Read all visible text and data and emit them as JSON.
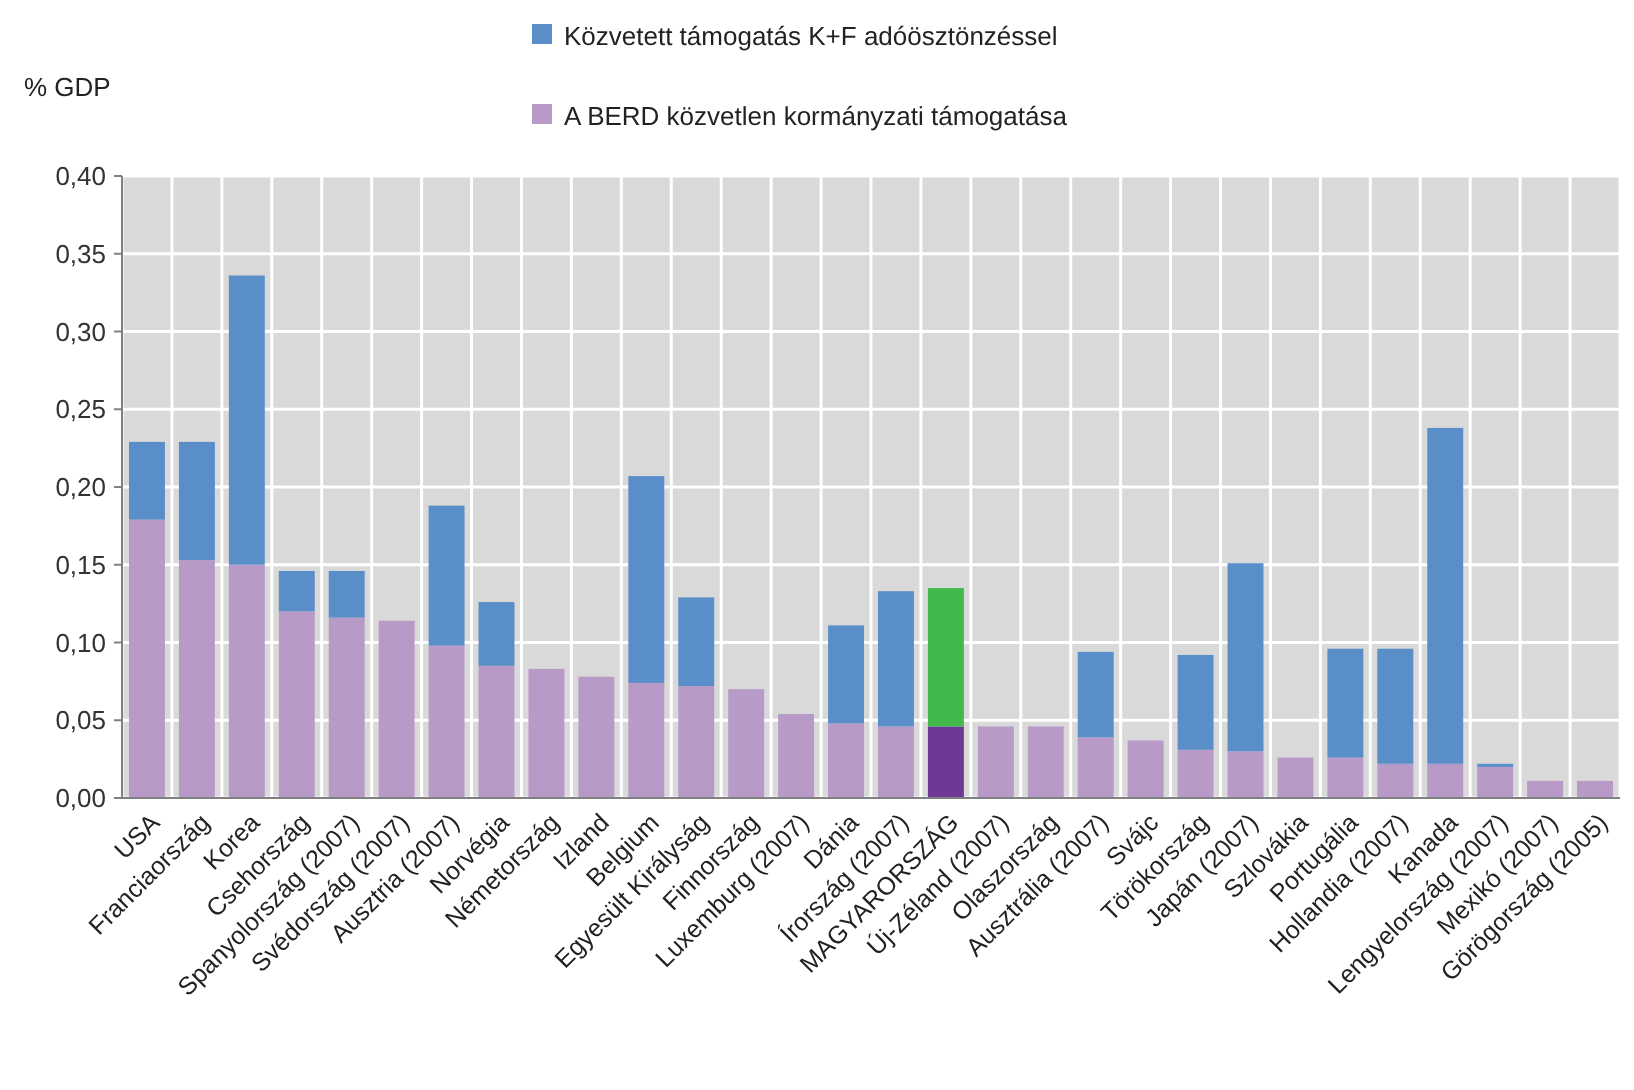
{
  "chart_data": {
    "type": "bar",
    "stacked": true,
    "ylabel": "% GDP",
    "legend": "top",
    "grid": true,
    "categories": [
      "USA",
      "Franciaország",
      "Korea",
      "Csehország",
      "Spanyolország (2007)",
      "Svédország (2007)",
      "Ausztria (2007)",
      "Norvégia",
      "Németország",
      "Izland",
      "Belgium",
      "Egyesült Királyság",
      "Finnország",
      "Luxemburg (2007)",
      "Dánia",
      "Írország (2007)",
      "MAGYARORSZÁG",
      "Új-Zéland (2007)",
      "Olaszország",
      "Ausztrália (2007)",
      "Svájc",
      "Törökország",
      "Japán (2007)",
      "Szlovákia",
      "Portugália",
      "Hollandia (2007)",
      "Kanada",
      "Lengyelország (2007)",
      "Mexikó (2007)",
      "Görögország (2005)"
    ],
    "series": [
      {
        "name": "A BERD közvetlen kormányzati támogatása",
        "color": "#b89ac8",
        "colors": [
          "#b89ac8",
          "#b89ac8",
          "#b89ac8",
          "#b89ac8",
          "#b89ac8",
          "#b89ac8",
          "#b89ac8",
          "#b89ac8",
          "#b89ac8",
          "#b89ac8",
          "#b89ac8",
          "#b89ac8",
          "#b89ac8",
          "#b89ac8",
          "#b89ac8",
          "#b89ac8",
          "#6e3897",
          "#b89ac8",
          "#b89ac8",
          "#b89ac8",
          "#b89ac8",
          "#b89ac8",
          "#b89ac8",
          "#b89ac8",
          "#b89ac8",
          "#b89ac8",
          "#b89ac8",
          "#b89ac8",
          "#b89ac8",
          "#b89ac8"
        ],
        "values": [
          0.179,
          0.153,
          0.15,
          0.12,
          0.116,
          0.114,
          0.098,
          0.085,
          0.083,
          0.078,
          0.074,
          0.072,
          0.07,
          0.054,
          0.048,
          0.046,
          0.046,
          0.046,
          0.046,
          0.039,
          0.037,
          0.031,
          0.03,
          0.026,
          0.026,
          0.022,
          0.022,
          0.02,
          0.011,
          0.011
        ]
      },
      {
        "name": "Közvetett támogatás K+F adóösztönzéssel",
        "color": "#5a8ec9",
        "colors": [
          "#5a8ec9",
          "#5a8ec9",
          "#5a8ec9",
          "#5a8ec9",
          "#5a8ec9",
          null,
          "#5a8ec9",
          "#5a8ec9",
          null,
          null,
          "#5a8ec9",
          "#5a8ec9",
          null,
          null,
          "#5a8ec9",
          "#5a8ec9",
          "#42b84a",
          null,
          null,
          "#5a8ec9",
          null,
          "#5a8ec9",
          "#5a8ec9",
          null,
          "#5a8ec9",
          "#5a8ec9",
          "#5a8ec9",
          "#5a8ec9",
          null,
          null
        ],
        "values": [
          0.05,
          0.076,
          0.186,
          0.026,
          0.03,
          null,
          0.09,
          0.041,
          null,
          null,
          0.133,
          0.057,
          null,
          null,
          0.063,
          0.087,
          0.089,
          null,
          null,
          0.055,
          null,
          0.061,
          0.121,
          null,
          0.07,
          0.074,
          0.216,
          0.002,
          null,
          null
        ]
      }
    ],
    "ylim": [
      0,
      0.4
    ],
    "yticks": [
      {
        "value": 0,
        "label": "0,00"
      },
      {
        "value": 0.05,
        "label": "0,05"
      },
      {
        "value": 0.1,
        "label": "0,10"
      },
      {
        "value": 0.15,
        "label": "0,15"
      },
      {
        "value": 0.2,
        "label": "0,20"
      },
      {
        "value": 0.25,
        "label": "0,25"
      },
      {
        "value": 0.3,
        "label": "0,30"
      },
      {
        "value": 0.35,
        "label": "0,35"
      },
      {
        "value": 0.4,
        "label": "0,40"
      }
    ]
  }
}
